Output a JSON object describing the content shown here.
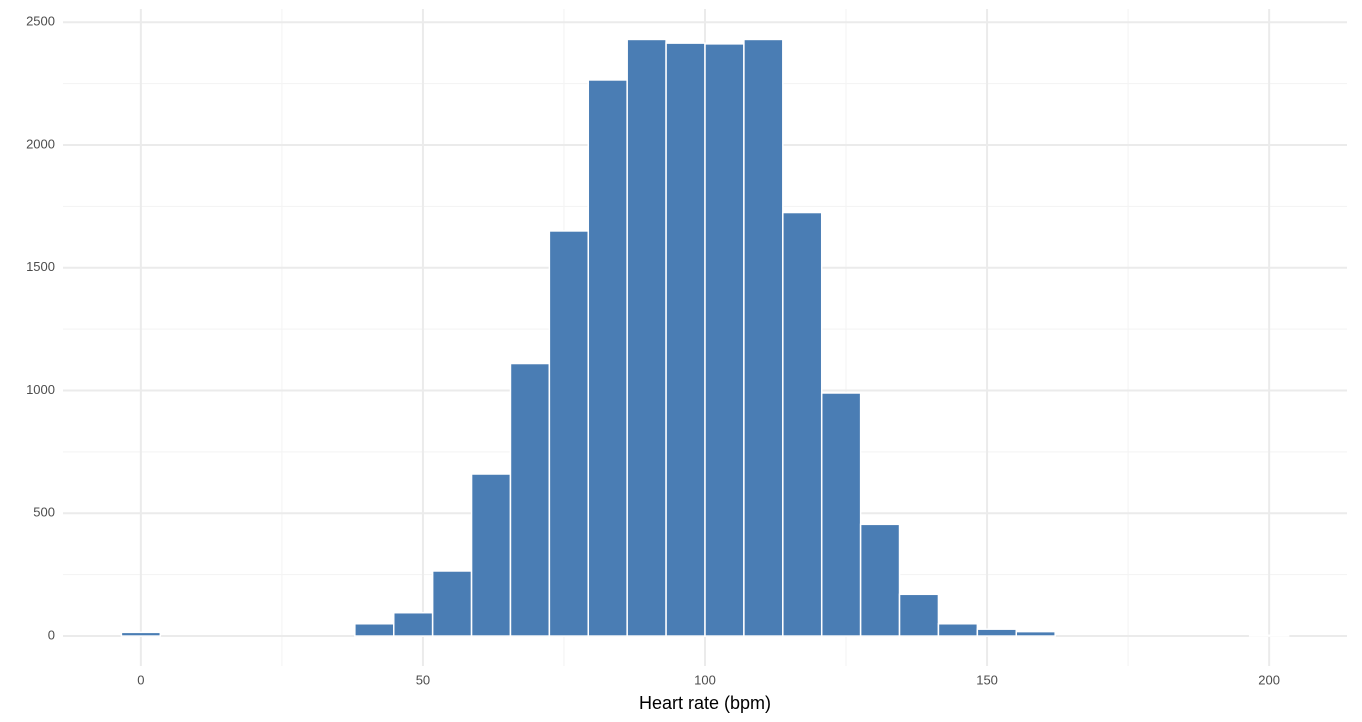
{
  "chart_data": {
    "type": "histogram",
    "x_label": "Heart rate (bpm)",
    "bins": [
      -3.448,
      3.448,
      10.345,
      17.241,
      24.138,
      31.034,
      37.931,
      44.828,
      51.724,
      58.621,
      65.517,
      72.414,
      79.31,
      86.207,
      93.103,
      100,
      106.897,
      113.793,
      120.69,
      127.586,
      134.483,
      141.379,
      148.276,
      155.172,
      162.069,
      168.966,
      175.862,
      182.759,
      189.655,
      196.552,
      203.448
    ],
    "values": [
      15,
      0,
      0,
      0,
      0,
      0,
      50,
      95,
      265,
      660,
      1110,
      1650,
      2265,
      2430,
      2415,
      2412,
      2430,
      1725,
      990,
      455,
      170,
      50,
      28,
      18,
      0,
      0,
      0,
      0,
      0,
      3
    ],
    "color": "#4a7db4",
    "xlim": [
      -13.8,
      213.8
    ],
    "ylim": [
      -122,
      2554
    ],
    "xticks": [
      0,
      50,
      100,
      150,
      200
    ],
    "yticks": [
      0,
      500,
      1000,
      1500,
      2000,
      2500
    ],
    "x_minor_grid": [
      25,
      75,
      125,
      175
    ],
    "y_minor_grid": [
      250,
      750,
      1250,
      1750,
      2250
    ],
    "grid": true
  }
}
